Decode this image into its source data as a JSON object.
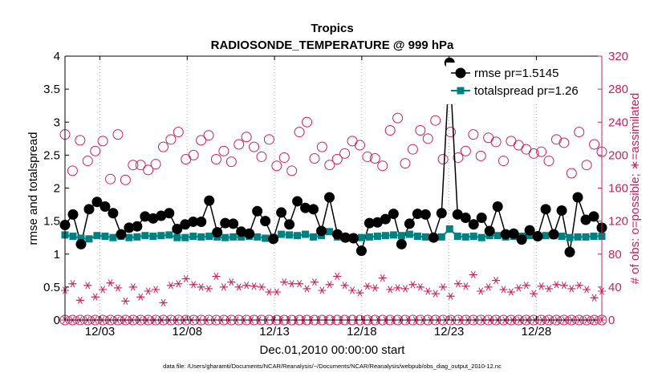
{
  "chart_data": {
    "type": "line",
    "title": "Tropics",
    "subtitle": "RADIOSONDE_TEMPERATURE @ 999 hPa",
    "xlabel": "Dec.01,2010 00:00:00 start",
    "ylabel_left": "rmse and totalspread",
    "ylabel_right": "# of obs: o=possible; ∗=assimilated",
    "footnote": "data file: /Users/gharamti/Documents/NCAR/Reanalysis/~/Documents/NCAR/Reanalysis/webpub/obs_diag_output_2010-12.nc",
    "x_tick_values": [
      3,
      8,
      13,
      18,
      23,
      28
    ],
    "x_tick_labels": [
      "12/03",
      "12/08",
      "12/13",
      "12/18",
      "12/23",
      "12/28"
    ],
    "xlim": [
      1,
      31.75
    ],
    "ylim_left": [
      0,
      4
    ],
    "ylim_right": [
      0,
      320
    ],
    "y_left_ticks": [
      "0",
      "0.5",
      "1",
      "1.5",
      "2",
      "2.5",
      "3",
      "3.5",
      "4"
    ],
    "y_right_ticks": [
      "0",
      "40",
      "80",
      "120",
      "160",
      "200",
      "240",
      "280",
      "320"
    ],
    "colors": {
      "rmse": "#000000",
      "totalspread": "#008080",
      "obs": "#cc1f5e",
      "axis": "#000000"
    },
    "series": [
      {
        "name": "rmse",
        "legend": "rmse pr=1.5145",
        "axis": "left",
        "marker": "filled-circle",
        "values": [
          1.44,
          1.6,
          1.15,
          1.68,
          1.79,
          1.72,
          1.62,
          1.3,
          1.4,
          1.42,
          1.57,
          1.54,
          1.58,
          1.62,
          1.38,
          1.45,
          1.49,
          1.49,
          1.81,
          1.33,
          1.47,
          1.46,
          1.34,
          1.31,
          1.65,
          1.5,
          1.23,
          1.63,
          1.45,
          1.8,
          1.7,
          1.68,
          1.35,
          1.86,
          1.3,
          1.25,
          1.24,
          1.05,
          1.47,
          1.48,
          1.53,
          1.61,
          1.15,
          1.46,
          1.61,
          1.6,
          1.25,
          1.62,
          3.9,
          1.6,
          1.55,
          1.45,
          1.55,
          1.35,
          1.72,
          1.3,
          1.31,
          1.22,
          1.36,
          1.27,
          1.68,
          1.3,
          1.66,
          1.03,
          1.86,
          1.52,
          1.57,
          1.4
        ]
      },
      {
        "name": "totalspread",
        "legend": "totalspread pr=1.26",
        "axis": "left",
        "marker": "filled-square",
        "values": [
          1.29,
          1.27,
          1.24,
          1.23,
          1.28,
          1.27,
          1.25,
          1.27,
          1.25,
          1.26,
          1.28,
          1.27,
          1.28,
          1.29,
          1.25,
          1.25,
          1.27,
          1.26,
          1.27,
          1.26,
          1.25,
          1.26,
          1.26,
          1.27,
          1.26,
          1.24,
          1.25,
          1.3,
          1.29,
          1.28,
          1.3,
          1.26,
          1.28,
          1.34,
          1.26,
          1.24,
          1.25,
          1.25,
          1.26,
          1.27,
          1.28,
          1.29,
          1.28,
          1.3,
          1.27,
          1.26,
          1.25,
          1.26,
          1.38,
          1.27,
          1.26,
          1.27,
          1.25,
          1.28,
          1.28,
          1.26,
          1.27,
          1.27,
          1.28,
          1.26,
          1.28,
          1.28,
          1.27,
          1.25,
          1.26,
          1.26,
          1.27,
          1.27
        ]
      },
      {
        "name": "obs_possible",
        "legend": "",
        "axis": "right",
        "marker": "open-circle",
        "values": [
          225,
          181,
          218,
          193,
          205,
          217,
          171,
          225,
          170,
          188,
          188,
          182,
          189,
          210,
          219,
          228,
          195,
          200,
          218,
          224,
          195,
          205,
          192,
          213,
          222,
          210,
          198,
          219,
          187,
          197,
          181,
          228,
          240,
          196,
          210,
          188,
          195,
          202,
          217,
          212,
          198,
          196,
          187,
          230,
          245,
          190,
          207,
          230,
          220,
          242,
          195,
          228,
          197,
          205,
          225,
          199,
          221,
          216,
          193,
          217,
          212,
          207,
          202,
          204,
          193,
          219,
          215,
          178,
          228,
          188,
          213,
          204
        ]
      },
      {
        "name": "obs_assimilated",
        "legend": "",
        "axis": "right",
        "marker": "asterisk",
        "values": [
          36,
          44,
          24,
          42,
          28,
          37,
          45,
          39,
          23,
          40,
          28,
          35,
          37,
          21,
          42,
          44,
          50,
          43,
          40,
          38,
          53,
          40,
          46,
          40,
          42,
          41,
          40,
          34,
          34,
          46,
          44,
          44,
          38,
          46,
          36,
          43,
          53,
          42,
          36,
          33,
          41,
          39,
          51,
          37,
          39,
          38,
          43,
          40,
          35,
          32,
          40,
          29,
          44,
          41,
          55,
          35,
          40,
          48,
          37,
          34,
          39,
          42,
          32,
          41,
          38,
          43,
          42,
          38,
          42,
          37,
          27,
          35
        ]
      },
      {
        "name": "obs_possible_zero",
        "legend": "",
        "axis": "right",
        "marker": "open-circle",
        "values": [
          0,
          0,
          0,
          0,
          0,
          0,
          0,
          0,
          0,
          0,
          0,
          0,
          0,
          0,
          0,
          0,
          0,
          0,
          0,
          0,
          0,
          0,
          0,
          0,
          0,
          0,
          0,
          0,
          0,
          0,
          0,
          0,
          0,
          0,
          0,
          0,
          0,
          0,
          0,
          0,
          0,
          0,
          0,
          0,
          0,
          0,
          0,
          0,
          0,
          0,
          0,
          0,
          0,
          0,
          0,
          0,
          0,
          0,
          0,
          0,
          0,
          0,
          0,
          0,
          0,
          0,
          0,
          0,
          0,
          0,
          0,
          0
        ]
      },
      {
        "name": "obs_assimilated_zero",
        "legend": "",
        "axis": "right",
        "marker": "asterisk",
        "values": [
          0,
          0,
          0,
          0,
          0,
          0,
          0,
          0,
          0,
          0,
          0,
          0,
          0,
          0,
          0,
          0,
          0,
          0,
          0,
          0,
          0,
          0,
          0,
          0,
          0,
          0,
          0,
          0,
          0,
          0,
          0,
          0,
          0,
          0,
          0,
          0,
          0,
          0,
          0,
          0,
          0,
          0,
          0,
          0,
          0,
          0,
          0,
          0,
          0,
          0,
          0,
          0,
          0,
          0,
          0,
          0,
          0,
          0,
          0,
          0,
          0,
          0,
          0,
          0,
          0,
          0,
          0,
          0,
          0,
          0,
          0,
          0,
          0
        ]
      }
    ]
  }
}
